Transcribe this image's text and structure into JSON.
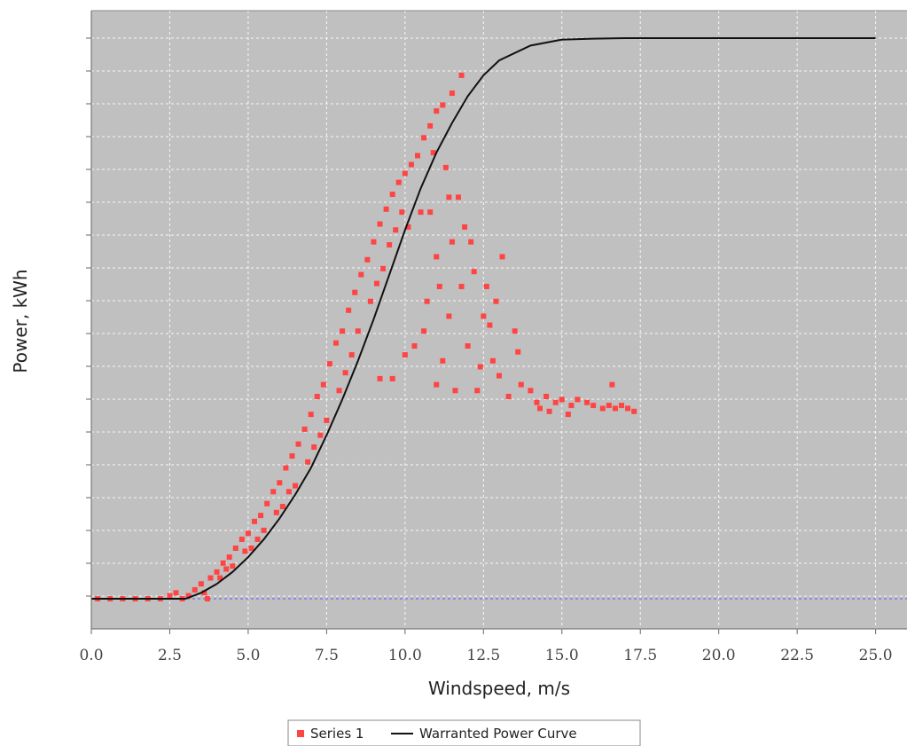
{
  "chart_data": {
    "type": "scatter",
    "title": "",
    "xlabel": "Windspeed, m/s",
    "ylabel": "Power, kWh",
    "xlim": [
      0,
      26
    ],
    "ylim": [
      -0.1,
      1.8
    ],
    "x_ticks": [
      "0.0",
      "2.5",
      "5.0",
      "7.5",
      "10.0",
      "12.5",
      "15.0",
      "17.5",
      "20.0",
      "22.5",
      "25.0"
    ],
    "y_tick_labels_shown": false,
    "grid": true,
    "background": "#c0c0c0",
    "legend_position": "bottom",
    "series": [
      {
        "name": "Series 1",
        "kind": "scatter",
        "color": "#ff4444",
        "points": [
          [
            0.2,
            0.0
          ],
          [
            0.6,
            0.0
          ],
          [
            1.0,
            0.0
          ],
          [
            1.4,
            0.0
          ],
          [
            1.8,
            0.0
          ],
          [
            2.2,
            0.0
          ],
          [
            2.5,
            0.01
          ],
          [
            2.7,
            0.02
          ],
          [
            2.9,
            0.0
          ],
          [
            3.1,
            0.01
          ],
          [
            3.3,
            0.03
          ],
          [
            3.5,
            0.05
          ],
          [
            3.7,
            0.0
          ],
          [
            3.8,
            0.07
          ],
          [
            4.0,
            0.09
          ],
          [
            4.2,
            0.12
          ],
          [
            4.4,
            0.14
          ],
          [
            4.6,
            0.17
          ],
          [
            4.8,
            0.2
          ],
          [
            5.0,
            0.22
          ],
          [
            5.2,
            0.26
          ],
          [
            5.4,
            0.28
          ],
          [
            5.6,
            0.32
          ],
          [
            5.8,
            0.36
          ],
          [
            6.0,
            0.39
          ],
          [
            6.2,
            0.44
          ],
          [
            6.4,
            0.48
          ],
          [
            6.6,
            0.52
          ],
          [
            6.8,
            0.57
          ],
          [
            7.0,
            0.62
          ],
          [
            7.2,
            0.68
          ],
          [
            7.4,
            0.72
          ],
          [
            7.6,
            0.79
          ],
          [
            7.8,
            0.86
          ],
          [
            8.0,
            0.9
          ],
          [
            8.2,
            0.97
          ],
          [
            8.4,
            1.03
          ],
          [
            8.6,
            1.09
          ],
          [
            8.8,
            1.14
          ],
          [
            9.0,
            1.2
          ],
          [
            9.2,
            1.26
          ],
          [
            9.4,
            1.31
          ],
          [
            9.6,
            1.36
          ],
          [
            9.8,
            1.4
          ],
          [
            10.0,
            1.43
          ],
          [
            10.2,
            1.46
          ],
          [
            10.4,
            1.49
          ],
          [
            10.6,
            1.55
          ],
          [
            10.8,
            1.59
          ],
          [
            11.0,
            1.64
          ],
          [
            11.2,
            1.66
          ],
          [
            11.5,
            1.7
          ],
          [
            11.8,
            1.76
          ],
          [
            4.1,
            0.07
          ],
          [
            4.5,
            0.11
          ],
          [
            5.1,
            0.17
          ],
          [
            5.5,
            0.23
          ],
          [
            6.1,
            0.31
          ],
          [
            6.5,
            0.38
          ],
          [
            7.1,
            0.51
          ],
          [
            7.5,
            0.6
          ],
          [
            8.1,
            0.76
          ],
          [
            8.5,
            0.9
          ],
          [
            9.1,
            1.06
          ],
          [
            9.5,
            1.19
          ],
          [
            9.9,
            1.3
          ],
          [
            3.6,
            0.02
          ],
          [
            4.3,
            0.1
          ],
          [
            4.9,
            0.16
          ],
          [
            5.3,
            0.2
          ],
          [
            5.9,
            0.29
          ],
          [
            6.3,
            0.36
          ],
          [
            6.9,
            0.46
          ],
          [
            7.3,
            0.55
          ],
          [
            7.9,
            0.7
          ],
          [
            8.3,
            0.82
          ],
          [
            8.9,
            1.0
          ],
          [
            9.3,
            1.11
          ],
          [
            9.7,
            1.24
          ],
          [
            9.2,
            0.74
          ],
          [
            9.6,
            0.74
          ],
          [
            10.0,
            0.82
          ],
          [
            10.3,
            0.85
          ],
          [
            10.6,
            0.9
          ],
          [
            10.8,
            1.3
          ],
          [
            11.0,
            1.15
          ],
          [
            11.0,
            0.72
          ],
          [
            11.2,
            0.8
          ],
          [
            11.4,
            0.95
          ],
          [
            11.5,
            1.2
          ],
          [
            11.6,
            0.7
          ],
          [
            11.8,
            1.05
          ],
          [
            11.9,
            1.25
          ],
          [
            12.0,
            0.85
          ],
          [
            12.2,
            1.1
          ],
          [
            12.3,
            0.7
          ],
          [
            12.5,
            0.95
          ],
          [
            12.6,
            1.05
          ],
          [
            12.8,
            0.8
          ],
          [
            13.0,
            0.75
          ],
          [
            13.1,
            1.15
          ],
          [
            13.3,
            0.68
          ],
          [
            13.5,
            0.9
          ],
          [
            13.7,
            0.72
          ],
          [
            14.0,
            0.7
          ],
          [
            14.2,
            0.66
          ],
          [
            14.5,
            0.68
          ],
          [
            14.8,
            0.66
          ],
          [
            15.0,
            0.67
          ],
          [
            15.3,
            0.65
          ],
          [
            15.5,
            0.67
          ],
          [
            15.8,
            0.66
          ],
          [
            16.0,
            0.65
          ],
          [
            16.3,
            0.64
          ],
          [
            16.5,
            0.65
          ],
          [
            16.7,
            0.64
          ],
          [
            16.9,
            0.65
          ],
          [
            17.1,
            0.64
          ],
          [
            17.3,
            0.63
          ],
          [
            16.6,
            0.72
          ],
          [
            15.2,
            0.62
          ],
          [
            14.3,
            0.64
          ],
          [
            12.9,
            1.0
          ],
          [
            12.1,
            1.2
          ],
          [
            11.7,
            1.35
          ],
          [
            11.3,
            1.45
          ],
          [
            10.9,
            1.5
          ],
          [
            10.5,
            1.3
          ],
          [
            10.1,
            1.25
          ],
          [
            11.1,
            1.05
          ],
          [
            12.4,
            0.78
          ],
          [
            13.6,
            0.83
          ],
          [
            14.6,
            0.63
          ],
          [
            10.7,
            1.0
          ],
          [
            11.4,
            1.35
          ],
          [
            12.7,
            0.92
          ]
        ]
      },
      {
        "name": "Warranted Power Curve",
        "kind": "line",
        "color": "#111111",
        "points": [
          [
            0.0,
            0.0
          ],
          [
            1.0,
            0.0
          ],
          [
            2.0,
            0.0
          ],
          [
            3.0,
            0.0
          ],
          [
            3.5,
            0.02
          ],
          [
            4.0,
            0.05
          ],
          [
            4.5,
            0.09
          ],
          [
            5.0,
            0.14
          ],
          [
            5.5,
            0.2
          ],
          [
            6.0,
            0.27
          ],
          [
            6.5,
            0.35
          ],
          [
            7.0,
            0.44
          ],
          [
            7.5,
            0.55
          ],
          [
            8.0,
            0.67
          ],
          [
            8.5,
            0.8
          ],
          [
            9.0,
            0.94
          ],
          [
            9.5,
            1.09
          ],
          [
            10.0,
            1.24
          ],
          [
            10.5,
            1.38
          ],
          [
            11.0,
            1.5
          ],
          [
            11.5,
            1.6
          ],
          [
            12.0,
            1.69
          ],
          [
            12.5,
            1.76
          ],
          [
            13.0,
            1.81
          ],
          [
            14.0,
            1.86
          ],
          [
            15.0,
            1.88
          ],
          [
            16.0,
            1.883
          ],
          [
            17.0,
            1.885
          ],
          [
            18.0,
            1.885
          ],
          [
            20.0,
            1.885
          ],
          [
            22.5,
            1.885
          ],
          [
            25.0,
            1.885
          ]
        ]
      }
    ]
  }
}
